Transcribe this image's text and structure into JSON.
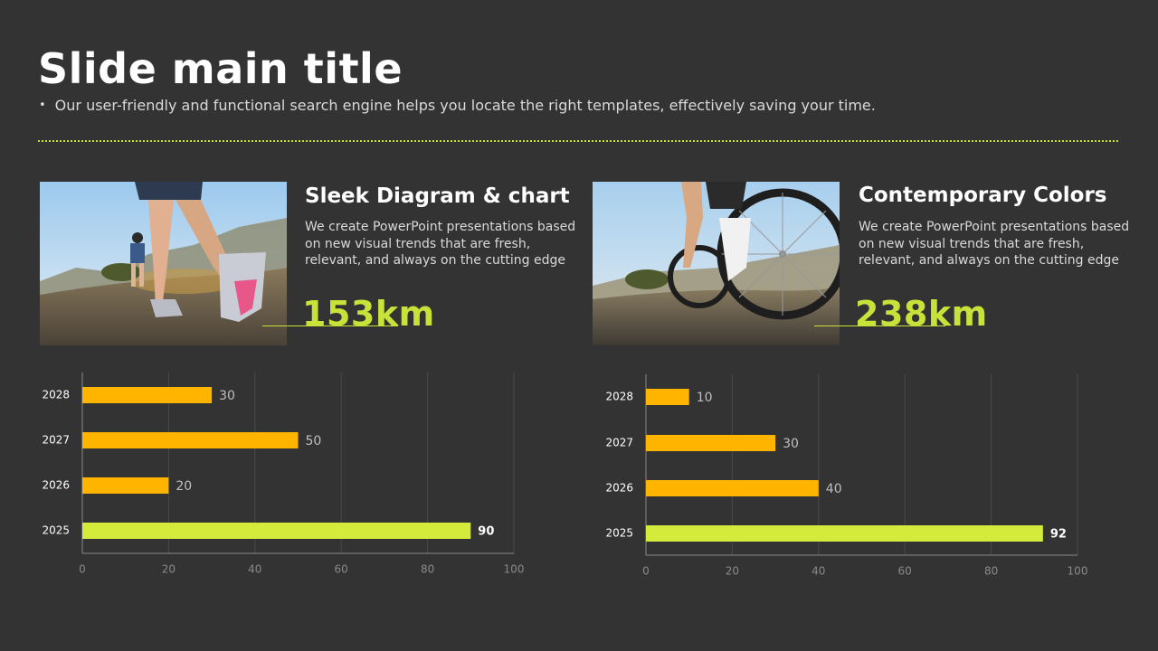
{
  "slide": {
    "title": "Slide main title",
    "subtitle": "Our user-friendly and functional search engine helps you locate the right templates, effectively saving your time."
  },
  "colors": {
    "background": "#333333",
    "accent": "#c9e23a",
    "bar": "#ffb400",
    "highlight_bar": "#d4eb3c"
  },
  "cards": [
    {
      "title": "Sleek Diagram & chart",
      "text": "We create PowerPoint presentations based on new visual trends that are fresh, relevant, and always on the cutting edge",
      "metric": "153km"
    },
    {
      "title": "Contemporary Colors",
      "text": "We create PowerPoint presentations based on new visual trends that are fresh, relevant, and always on the cutting edge",
      "metric": "238km"
    }
  ],
  "chart_data": [
    {
      "type": "bar",
      "orientation": "horizontal",
      "categories": [
        "2028",
        "2027",
        "2026",
        "2025"
      ],
      "values": [
        30,
        50,
        20,
        90
      ],
      "highlight": "2025",
      "xlim": [
        0,
        100
      ],
      "xticks": [
        0,
        20,
        40,
        60,
        80,
        100
      ],
      "grid": true
    },
    {
      "type": "bar",
      "orientation": "horizontal",
      "categories": [
        "2028",
        "2027",
        "2026",
        "2025"
      ],
      "values": [
        10,
        30,
        40,
        92
      ],
      "highlight": "2025",
      "xlim": [
        0,
        100
      ],
      "xticks": [
        0,
        20,
        40,
        60,
        80,
        100
      ],
      "grid": true
    }
  ]
}
